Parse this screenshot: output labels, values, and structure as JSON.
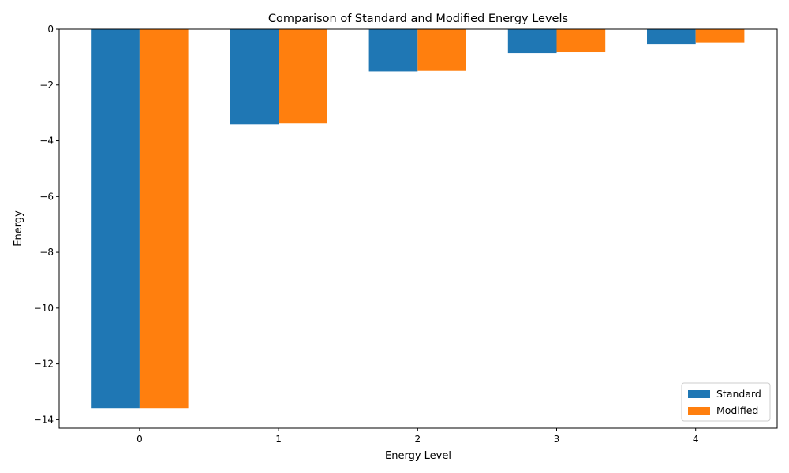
{
  "chart_data": {
    "type": "bar",
    "title": "Comparison of Standard and Modified Energy Levels",
    "xlabel": "Energy Level",
    "ylabel": "Energy",
    "categories": [
      "0",
      "1",
      "2",
      "3",
      "4"
    ],
    "series": [
      {
        "name": "Standard",
        "color": "#1f77b4",
        "values": [
          -13.6,
          -3.4,
          -1.51,
          -0.85,
          -0.54
        ]
      },
      {
        "name": "Modified",
        "color": "#ff7f0e",
        "values": [
          -13.6,
          -3.37,
          -1.49,
          -0.82,
          -0.47
        ]
      }
    ],
    "ylim": [
      -14.3,
      0
    ],
    "yticks": [
      0,
      -2,
      -4,
      -6,
      -8,
      -10,
      -12,
      -14
    ],
    "ytick_labels": [
      "0",
      "−2",
      "−4",
      "−6",
      "−8",
      "−10",
      "−12",
      "−14"
    ],
    "grid": false,
    "legend_position": "bottom-right"
  }
}
